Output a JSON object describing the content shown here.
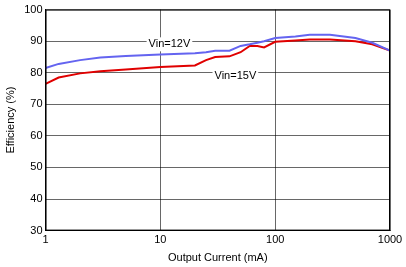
{
  "chart_data": {
    "type": "line",
    "x_label": "Output Current (mA)",
    "y_label": "Efficiency (%)",
    "x": [
      1,
      1.3,
      2,
      3,
      5,
      10,
      20,
      25,
      30,
      40,
      50,
      60,
      70,
      80,
      100,
      150,
      200,
      300,
      500,
      700,
      1000
    ],
    "series": [
      {
        "name": "Vin=12V",
        "color": "#6464f0",
        "values": [
          81.5,
          82.8,
          84,
          84.8,
          85.3,
          85.8,
          86.2,
          86.5,
          87,
          87,
          88.5,
          89,
          89.5,
          90,
          91,
          91.5,
          92,
          92,
          91,
          89.5,
          87
        ]
      },
      {
        "name": "Vin=15V",
        "color": "#e00000",
        "values": [
          76.5,
          78.5,
          79.8,
          80.5,
          81,
          81.8,
          82.3,
          84,
          85,
          85.2,
          86.5,
          88.5,
          88.5,
          88,
          89.8,
          90.2,
          90.5,
          90.5,
          90,
          89,
          87
        ]
      }
    ],
    "annotations": [
      {
        "text": "Vin=12V",
        "x": 12,
        "y": 89
      },
      {
        "text": "Vin=15V",
        "x": 45,
        "y": 79
      }
    ],
    "xlim": [
      1,
      1000
    ],
    "xticks": [
      1,
      10,
      100,
      1000
    ],
    "ylim": [
      30,
      100
    ],
    "yticks": [
      30,
      40,
      50,
      60,
      70,
      80,
      90,
      100
    ],
    "log": "x",
    "grid": true
  }
}
